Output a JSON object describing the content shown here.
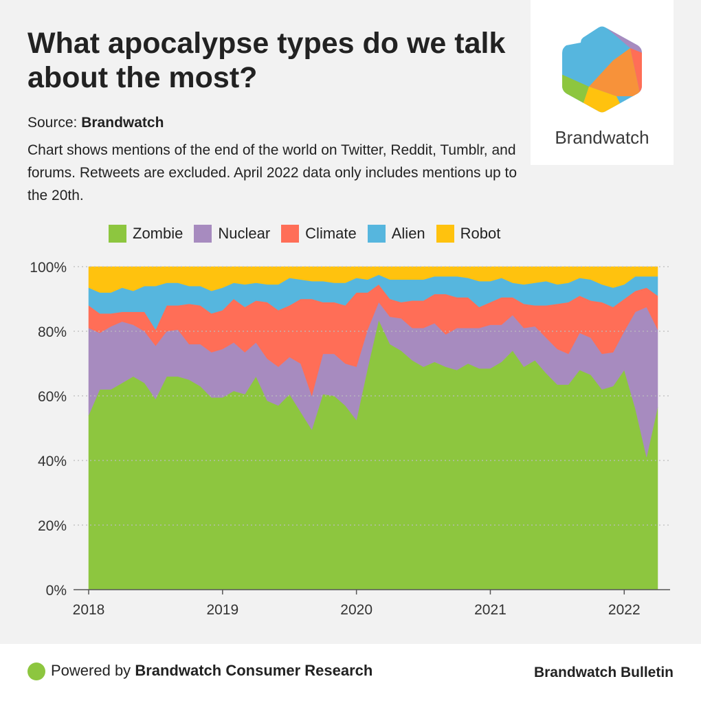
{
  "header": {
    "title": "What apocalypse types do we talk about the most?",
    "source_prefix": "Source:",
    "source_name": "Brandwatch",
    "description": "Chart shows mentions of the end of the world on Twitter, Reddit, Tumblr, and forums. Retweets are excluded. April 2022 data only includes mentions up to the 20th."
  },
  "logo": {
    "text": "Brandwatch"
  },
  "footer": {
    "powered_prefix": "Powered by",
    "powered_name": "Brandwatch Consumer Research",
    "bulletin": "Brandwatch Bulletin"
  },
  "chart_data": {
    "type": "area",
    "stacked": true,
    "percent": true,
    "x_ticks": [
      "2018",
      "2019",
      "2020",
      "2021",
      "2022"
    ],
    "y_ticks": [
      "0%",
      "20%",
      "40%",
      "60%",
      "80%",
      "100%"
    ],
    "ylim": [
      0,
      100
    ],
    "x_start": "2018-01",
    "x_end": "2022-04",
    "x": [
      "2018-01",
      "2018-02",
      "2018-03",
      "2018-04",
      "2018-05",
      "2018-06",
      "2018-07",
      "2018-08",
      "2018-09",
      "2018-10",
      "2018-11",
      "2018-12",
      "2019-01",
      "2019-02",
      "2019-03",
      "2019-04",
      "2019-05",
      "2019-06",
      "2019-07",
      "2019-08",
      "2019-09",
      "2019-10",
      "2019-11",
      "2019-12",
      "2020-01",
      "2020-02",
      "2020-03",
      "2020-04",
      "2020-05",
      "2020-06",
      "2020-07",
      "2020-08",
      "2020-09",
      "2020-10",
      "2020-11",
      "2020-12",
      "2021-01",
      "2021-02",
      "2021-03",
      "2021-04",
      "2021-05",
      "2021-06",
      "2021-07",
      "2021-08",
      "2021-09",
      "2021-10",
      "2021-11",
      "2021-12",
      "2022-01",
      "2022-02",
      "2022-03",
      "2022-04"
    ],
    "series": [
      {
        "name": "Zombie",
        "color": "#8dc63f",
        "values": [
          54,
          62,
          62,
          64,
          66,
          64,
          59,
          66,
          66,
          65,
          63,
          59.5,
          59.5,
          61.5,
          60.5,
          66,
          58.5,
          57,
          60.5,
          55,
          49.5,
          60.5,
          60,
          57,
          52.5,
          68.5,
          83.5,
          76,
          74,
          71,
          69,
          70.5,
          69,
          68,
          70,
          68.5,
          68.5,
          70.5,
          74,
          69,
          71,
          67,
          63.5,
          63.5,
          68,
          66.5,
          62,
          63,
          68,
          56,
          41,
          56.5
        ]
      },
      {
        "name": "Nuclear",
        "color": "#a78bbf",
        "values": [
          27,
          17.5,
          19.5,
          19,
          16,
          16,
          16.5,
          14,
          14.5,
          11,
          13,
          14,
          15,
          15,
          13,
          10.5,
          13,
          12,
          11.5,
          15,
          10.5,
          12.5,
          13,
          13,
          16.5,
          12,
          5.5,
          8.5,
          10,
          10,
          12,
          12,
          10,
          13,
          11,
          12.5,
          13.5,
          11.5,
          11,
          12,
          10.5,
          11,
          11,
          9.5,
          11.5,
          11.5,
          11,
          10.5,
          12,
          30,
          46.5,
          24
        ]
      },
      {
        "name": "Climate",
        "color": "#ff6e57",
        "values": [
          7,
          6,
          4,
          3,
          4,
          6,
          5,
          8,
          7.5,
          12.5,
          12,
          12,
          12,
          13.5,
          14,
          13,
          17.5,
          17.5,
          16,
          20,
          30,
          16,
          16,
          18,
          23,
          11.5,
          5.5,
          5.5,
          5,
          8.5,
          8.5,
          9,
          12.5,
          9.5,
          9.5,
          6.5,
          7,
          8.5,
          5.5,
          7.5,
          6.5,
          10,
          14,
          16,
          11.5,
          11.5,
          16,
          14,
          10,
          6.5,
          6,
          10.5
        ]
      },
      {
        "name": "Alien",
        "color": "#56b6de",
        "values": [
          5.5,
          6.5,
          6.5,
          7.5,
          6.5,
          8,
          13.5,
          7,
          7,
          5.5,
          6,
          7,
          7,
          5,
          7,
          5.5,
          5.5,
          8,
          8.5,
          6,
          5.5,
          6.5,
          6,
          7,
          4.5,
          4,
          3,
          6,
          7,
          6.5,
          6.5,
          5.5,
          5.5,
          6.5,
          6,
          8,
          6.5,
          6,
          4.5,
          6,
          7,
          7.5,
          6,
          6,
          5.5,
          6.5,
          5.5,
          6,
          4.5,
          4.5,
          3.5,
          6
        ]
      },
      {
        "name": "Robot",
        "color": "#ffc20e",
        "values": [
          6.5,
          8,
          8,
          6.5,
          7.5,
          6,
          6,
          5,
          5,
          6,
          6,
          7.5,
          6.5,
          5,
          5.5,
          5,
          5.5,
          5.5,
          3.5,
          4,
          4.5,
          4.5,
          5,
          5,
          3.5,
          4,
          2.5,
          4,
          4,
          4,
          4,
          3,
          3,
          3,
          3.5,
          4.5,
          4.5,
          3.5,
          5,
          5.5,
          5,
          4.5,
          5.5,
          5,
          3.5,
          4,
          5.5,
          6.5,
          5.5,
          3,
          3,
          3
        ]
      }
    ],
    "legend_position": "top",
    "grid": "horizontal-dotted"
  }
}
